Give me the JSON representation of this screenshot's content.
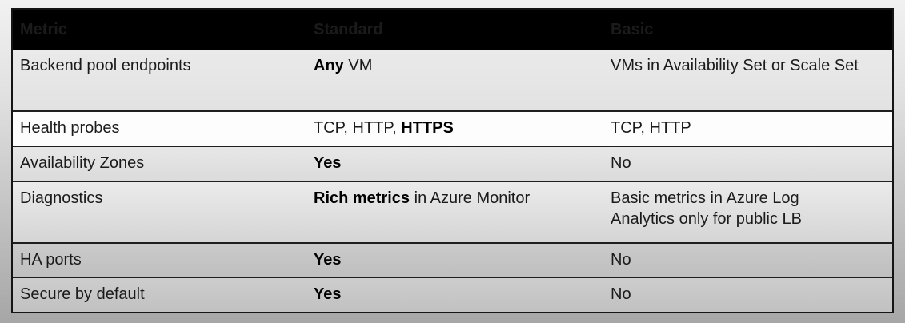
{
  "table": {
    "header": {
      "metric": "Metric",
      "standard": "Standard",
      "basic": "Basic"
    },
    "rows": [
      {
        "metric": "Backend pool endpoints",
        "standard_pre": "",
        "standard_bold": "Any",
        "standard_post": " VM",
        "basic": "VMs in Availability Set or Scale Set"
      },
      {
        "metric": "Health probes",
        "standard_pre": "TCP, HTTP, ",
        "standard_bold": "HTTPS",
        "standard_post": "",
        "basic": "TCP, HTTP"
      },
      {
        "metric": "Availability Zones",
        "standard_pre": "",
        "standard_bold": "Yes",
        "standard_post": "",
        "basic": "No"
      },
      {
        "metric": "Diagnostics",
        "standard_pre": "",
        "standard_bold": "Rich metrics",
        "standard_post": " in Azure Monitor",
        "basic": "Basic metrics in Azure Log Analytics only for public LB"
      },
      {
        "metric": "HA ports",
        "standard_pre": "",
        "standard_bold": "Yes",
        "standard_post": "",
        "basic": "No"
      },
      {
        "metric": "Secure by default",
        "standard_pre": "",
        "standard_bold": "Yes",
        "standard_post": "",
        "basic": "No"
      }
    ],
    "colors": {
      "header_bg": "#000000",
      "header_text": "#ffffff",
      "body_text": "#1b1b1b",
      "border": "#1a1a1a",
      "slide_bg_top": "#f1f1f1",
      "slide_bg_bottom": "#a6a6a6"
    }
  }
}
